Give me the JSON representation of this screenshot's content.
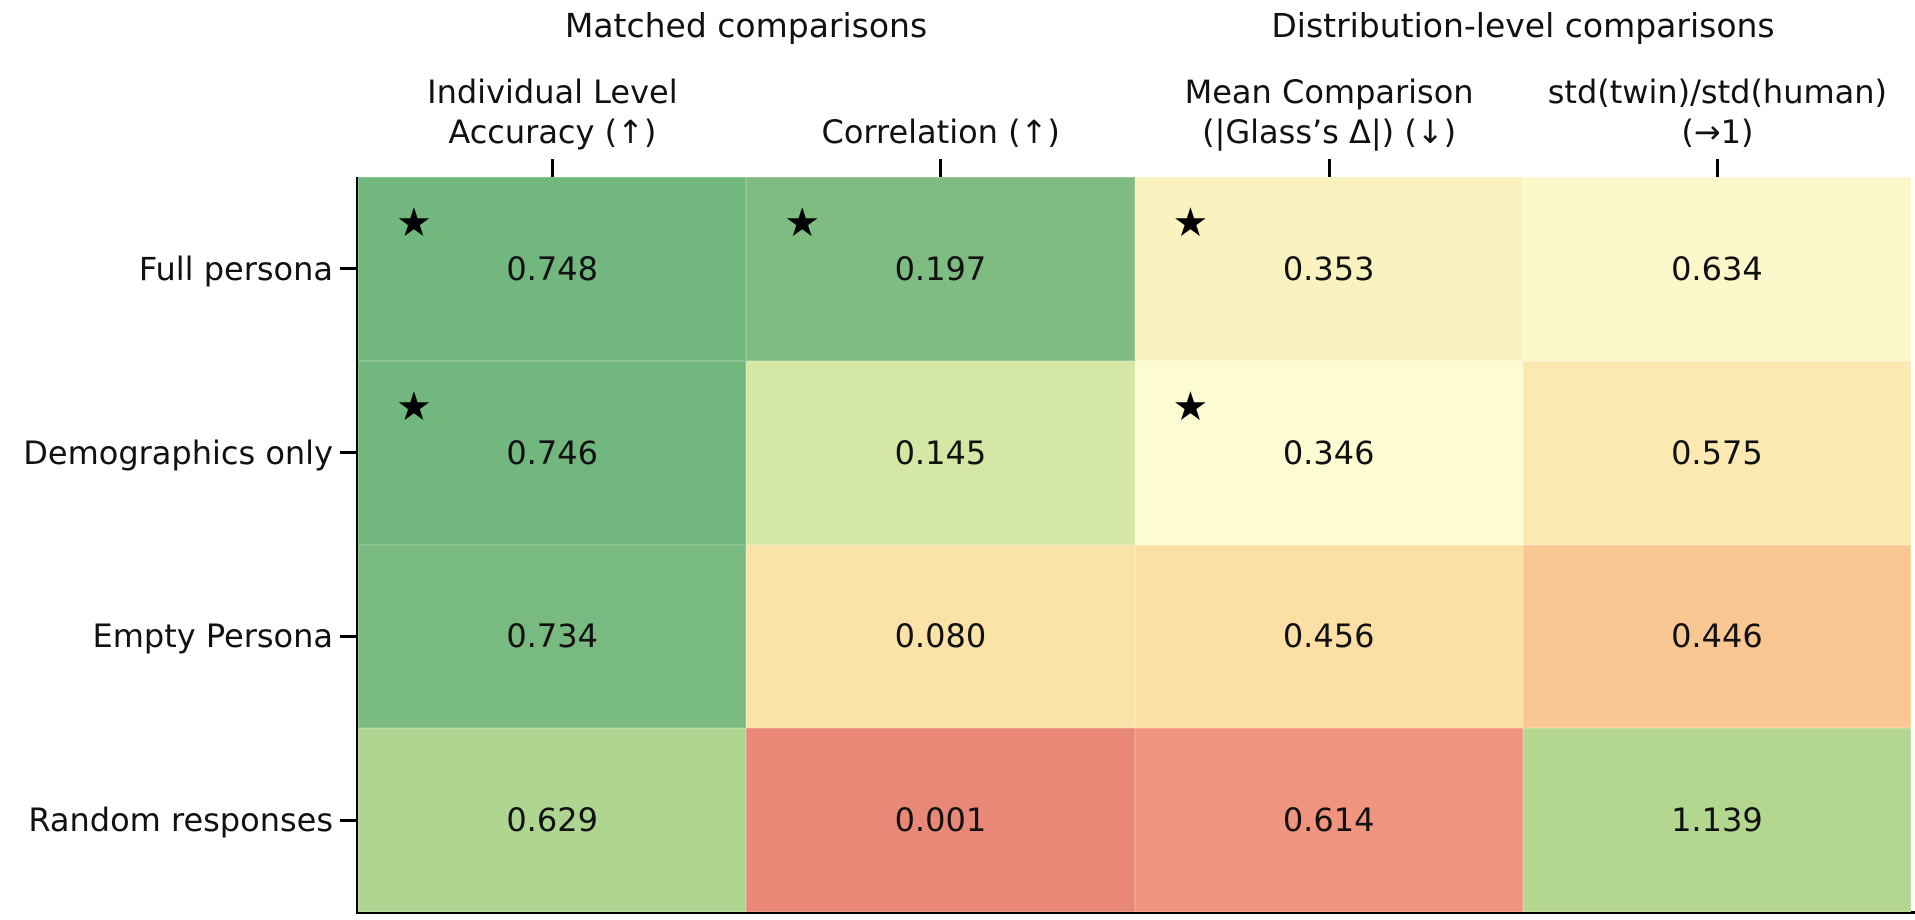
{
  "chart_data": {
    "type": "heatmap",
    "star_glyph": "★",
    "group_titles": [
      {
        "label": "Matched comparisons"
      },
      {
        "label": "Distribution-level comparisons"
      }
    ],
    "columns": [
      {
        "label_lines": [
          "Individual Level",
          "Accuracy (↑)"
        ]
      },
      {
        "label_lines": [
          "Correlation (↑)"
        ]
      },
      {
        "label_lines": [
          "Mean Comparison",
          "(|Glass’s Δ|) (↓)"
        ]
      },
      {
        "label_lines": [
          "std(twin)/std(human)",
          "(→1)"
        ]
      }
    ],
    "rows": [
      "Full persona",
      "Demographics only",
      "Empty Persona",
      "Random responses"
    ],
    "cells": [
      [
        {
          "value": "0.748",
          "star": true,
          "color": "#71B77E"
        },
        {
          "value": "0.197",
          "star": true,
          "color": "#7EBC81"
        },
        {
          "value": "0.353",
          "star": true,
          "color": "#FAF3C0"
        },
        {
          "value": "0.634",
          "star": false,
          "color": "#FCF8CB"
        }
      ],
      [
        {
          "value": "0.746",
          "star": true,
          "color": "#71B77E"
        },
        {
          "value": "0.145",
          "star": false,
          "color": "#D5E7A4"
        },
        {
          "value": "0.346",
          "star": true,
          "color": "#FDFBD2"
        },
        {
          "value": "0.575",
          "star": false,
          "color": "#FCE8B1"
        }
      ],
      [
        {
          "value": "0.734",
          "star": false,
          "color": "#78BA7F"
        },
        {
          "value": "0.080",
          "star": false,
          "color": "#FBE3A8"
        },
        {
          "value": "0.456",
          "star": false,
          "color": "#FCDFA4"
        },
        {
          "value": "0.446",
          "star": false,
          "color": "#F9C792"
        }
      ],
      [
        {
          "value": "0.629",
          "star": false,
          "color": "#AED690"
        },
        {
          "value": "0.001",
          "star": false,
          "color": "#E98876"
        },
        {
          "value": "0.614",
          "star": false,
          "color": "#EF947E"
        },
        {
          "value": "1.139",
          "star": false,
          "color": "#B3D78F"
        }
      ]
    ],
    "axis_text_color": "#111111",
    "spine_color": "#000000",
    "background_color": "#FFFFFF"
  }
}
